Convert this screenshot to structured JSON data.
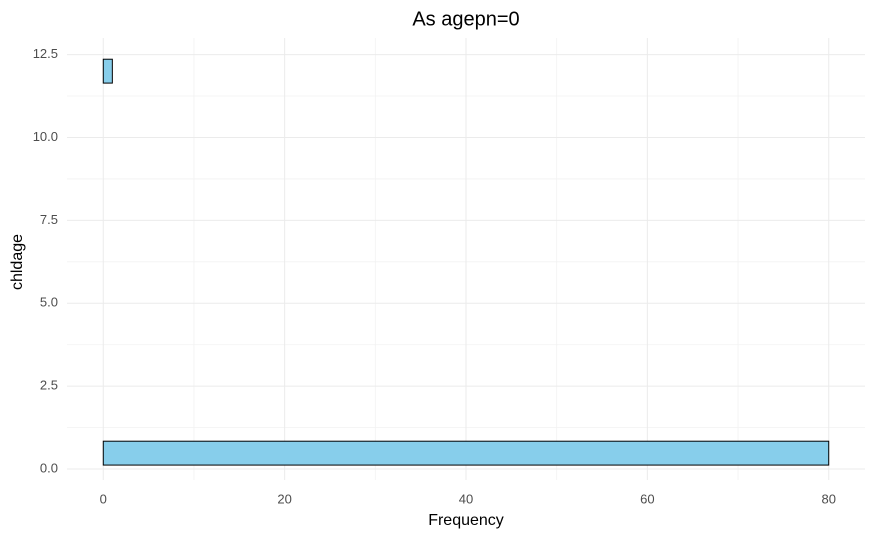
{
  "chart_data": {
    "type": "histogram",
    "orientation": "horizontal",
    "title": "As agepn=0",
    "x_label": "Frequency",
    "y_label": "chldage",
    "bins": [
      0.12,
      0.84,
      1.56,
      2.28,
      3.0,
      3.72,
      4.44,
      5.16,
      5.88,
      6.6,
      7.32,
      8.04,
      8.76,
      9.48,
      10.2,
      10.92,
      11.64,
      12.36
    ],
    "values": [
      80,
      0,
      0,
      0,
      0,
      0,
      0,
      0,
      0,
      0,
      0,
      0,
      0,
      0,
      0,
      0,
      1
    ],
    "color": "#87ceeb",
    "edge_color": "#000000",
    "xlim": [
      -4,
      84
    ],
    "xticks": [
      0,
      20,
      40,
      60,
      80
    ],
    "x_minor_ticks": [
      10,
      30,
      50,
      70
    ],
    "ylim": [
      -0.33,
      13.0
    ],
    "yticks": [
      {
        "value": 0,
        "label": "0.0"
      },
      2.5,
      {
        "value": 5,
        "label": "5.0"
      },
      7.5,
      {
        "value": 10,
        "label": "10.0"
      },
      12.5
    ],
    "y_minor_ticks": [
      1.25,
      3.75,
      6.25,
      8.75,
      11.25
    ],
    "grid": true
  }
}
